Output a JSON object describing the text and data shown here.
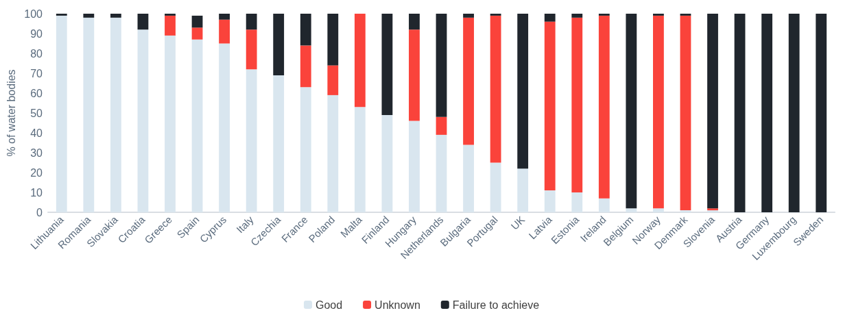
{
  "chart_data": {
    "type": "bar",
    "stacked": true,
    "ylabel": "% of water bodies",
    "ylim": [
      0,
      100
    ],
    "yticks": [
      0,
      10,
      20,
      30,
      40,
      50,
      60,
      70,
      80,
      90,
      100
    ],
    "grid": false,
    "legend": "bottom",
    "categories": [
      "Lithuania",
      "Romania",
      "Slovakia",
      "Croatia",
      "Greece",
      "Spain",
      "Cyprus",
      "Italy",
      "Czechia",
      "France",
      "Poland",
      "Malta",
      "Finland",
      "Hungary",
      "Netherlands",
      "Bulgaria",
      "Portugal",
      "UK",
      "Latvia",
      "Estonia",
      "Ireland",
      "Belgium",
      "Norway",
      "Denmark",
      "Slovenia",
      "Austria",
      "Germany",
      "Luxembourg",
      "Sweden"
    ],
    "series": [
      {
        "name": "Good",
        "color": "#d9e6ef",
        "values": [
          99,
          98,
          98,
          92,
          89,
          87,
          85,
          72,
          69,
          63,
          59,
          53,
          49,
          46,
          39,
          34,
          25,
          22,
          11,
          10,
          7,
          2,
          2,
          1,
          1,
          0,
          0,
          0,
          0
        ]
      },
      {
        "name": "Unknown",
        "color": "#fa433b",
        "values": [
          0,
          0,
          0,
          0,
          10,
          6,
          12,
          20,
          0,
          21,
          15,
          47,
          0,
          46,
          9,
          64,
          74,
          0,
          85,
          88,
          92,
          0,
          97,
          98,
          1,
          0,
          0,
          0,
          0
        ]
      },
      {
        "name": "Failure to achieve",
        "color": "#20262d",
        "values": [
          1,
          2,
          2,
          8,
          1,
          6,
          3,
          8,
          31,
          16,
          26,
          0,
          51,
          8,
          52,
          2,
          1,
          78,
          4,
          2,
          1,
          98,
          1,
          1,
          98,
          100,
          100,
          100,
          100
        ]
      }
    ]
  }
}
